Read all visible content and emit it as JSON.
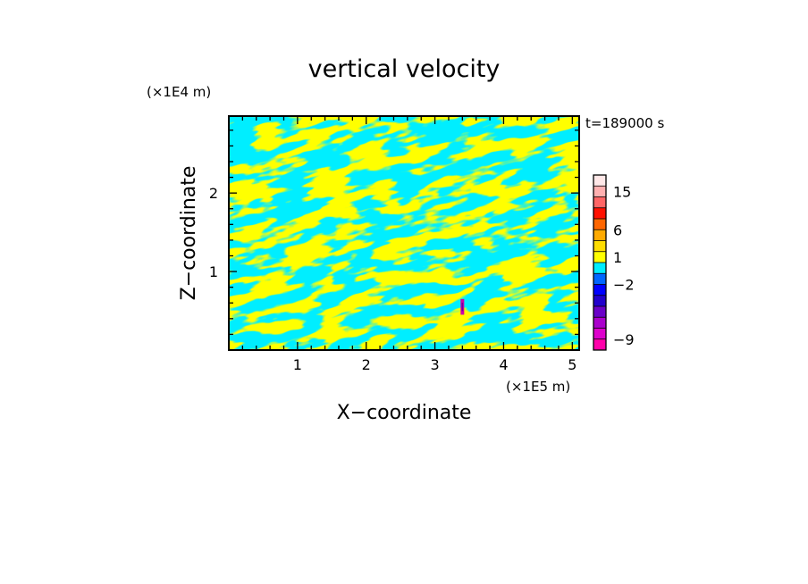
{
  "chart_data": {
    "type": "heatmap",
    "title": "vertical velocity",
    "xlabel": "X−coordinate",
    "ylabel": "Z−coordinate",
    "x_unit": "(×1E5 m)",
    "y_unit": "(×1E4 m)",
    "time_label": "t=189000 s",
    "xlim": [
      0,
      5.1
    ],
    "ylim": [
      0,
      2.98
    ],
    "x_ticks": [
      {
        "value": 1,
        "label": "1"
      },
      {
        "value": 2,
        "label": "2"
      },
      {
        "value": 3,
        "label": "3"
      },
      {
        "value": 4,
        "label": "4"
      },
      {
        "value": 5,
        "label": "5"
      }
    ],
    "y_ticks": [
      {
        "value": 1,
        "label": "1"
      },
      {
        "value": 2,
        "label": "2"
      }
    ],
    "x_minor_step": 0.2,
    "y_minor_step": 0.2,
    "field": {
      "dominant_colors": [
        "#00eeff",
        "#ffff00"
      ],
      "anomaly": {
        "x": 3.4,
        "z_min": 0.45,
        "z_max": 0.65,
        "colors": [
          "#cc00aa",
          "#6a00a0"
        ]
      }
    },
    "colorbar": {
      "levels": [
        {
          "color": "#ff00aa"
        },
        {
          "color": "#dd00cc"
        },
        {
          "color": "#aa00cc"
        },
        {
          "color": "#6a00c8"
        },
        {
          "color": "#2200cc"
        },
        {
          "color": "#0000ff"
        },
        {
          "color": "#0066ff"
        },
        {
          "color": "#00eeff"
        },
        {
          "color": "#ffff00"
        },
        {
          "color": "#ffdd00"
        },
        {
          "color": "#ffaa00"
        },
        {
          "color": "#ff6600"
        },
        {
          "color": "#ff1100"
        },
        {
          "color": "#ff6666"
        },
        {
          "color": "#ffb0b0"
        },
        {
          "color": "#ffe8e8"
        }
      ],
      "labels": [
        {
          "text": "−9",
          "level": 1
        },
        {
          "text": "−2",
          "level": 6
        },
        {
          "text": "1",
          "level": 8.5
        },
        {
          "text": "6",
          "level": 11
        },
        {
          "text": "15",
          "level": 14.5
        }
      ]
    }
  }
}
